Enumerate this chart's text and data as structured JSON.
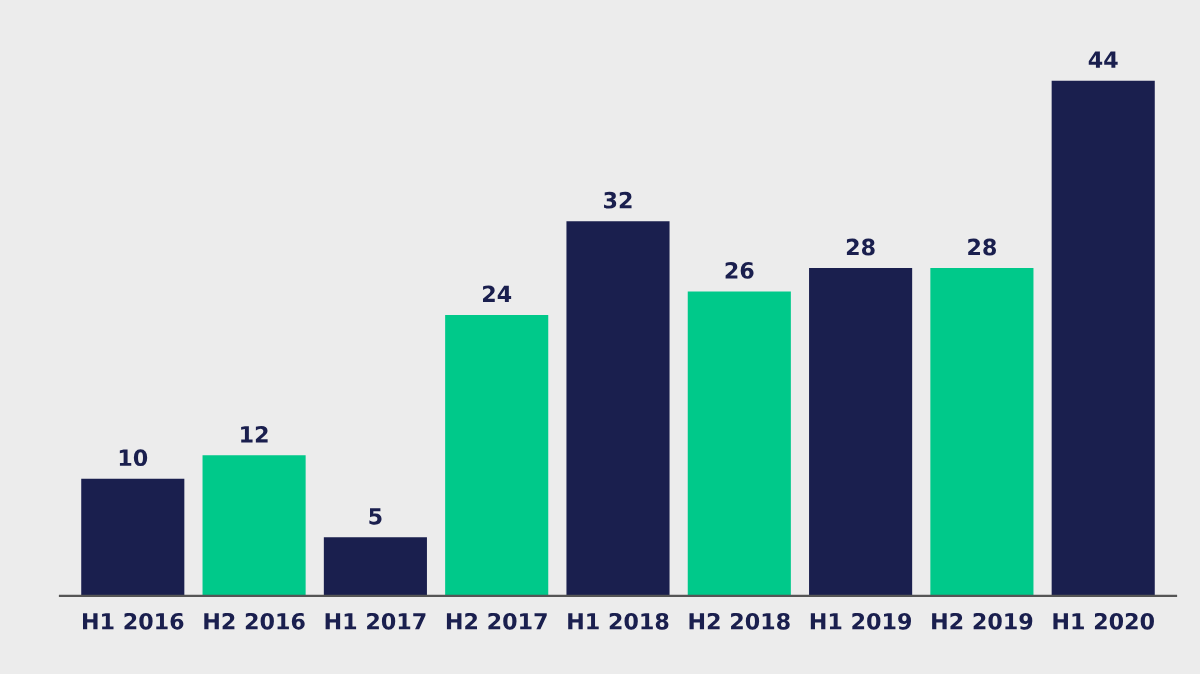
{
  "chart_data": {
    "type": "bar",
    "categories": [
      "H1 2016",
      "H2 2016",
      "H1 2017",
      "H2 2017",
      "H1 2018",
      "H2 2018",
      "H1 2019",
      "H2 2019",
      "H1 2020"
    ],
    "values": [
      10,
      12,
      5,
      24,
      32,
      26,
      28,
      28,
      44
    ],
    "colors": [
      "#1a1f4e",
      "#00c98a",
      "#1a1f4e",
      "#00c98a",
      "#1a1f4e",
      "#00c98a",
      "#1a1f4e",
      "#00c98a",
      "#1a1f4e"
    ],
    "data_labels": true,
    "grid": false,
    "legend": false
  }
}
